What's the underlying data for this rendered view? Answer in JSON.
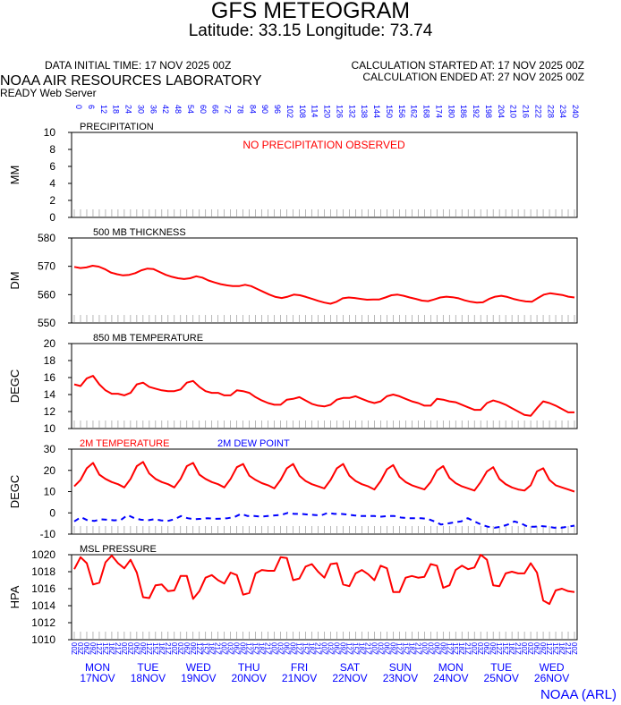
{
  "header": {
    "title": "GFS METEOGRAM",
    "subtitle": "Latitude: 33.15 Longitude:  73.74",
    "init_time": "DATA INITIAL TIME: 17 NOV 2025 00Z",
    "calc_started": "CALCULATION STARTED AT: 17 NOV 2025 00Z",
    "calc_ended": "CALCULATION ENDED AT: 27 NOV 2025 00Z",
    "org": "NOAA AIR RESOURCES LABORATORY",
    "server": "READY Web Server",
    "footer": "NOAA (ARL)"
  },
  "colors": {
    "red": "#ff0000",
    "blue": "#0000ff",
    "axis": "#000000",
    "tick": "#888888"
  },
  "chart_data": [
    {
      "id": "precip",
      "type": "bar",
      "title": "PRECIPITATION",
      "ylabel": "MM",
      "ylim": [
        0,
        10
      ],
      "yticks": [
        0,
        2,
        4,
        6,
        8,
        10
      ],
      "annotation": "NO PRECIPITATION OBSERVED",
      "forecast_hours": [
        "0",
        "6",
        "12",
        "18",
        "24",
        "30",
        "36",
        "42",
        "48",
        "54",
        "60",
        "66",
        "72",
        "78",
        "84",
        "90",
        "96",
        "102",
        "108",
        "114",
        "120",
        "126",
        "132",
        "138",
        "144",
        "150",
        "156",
        "162",
        "168",
        "174",
        "180",
        "186",
        "192",
        "198",
        "204",
        "210",
        "216",
        "222",
        "228",
        "234",
        "240"
      ],
      "values": []
    },
    {
      "id": "thickness",
      "type": "line",
      "title": "500 MB  THICKNESS",
      "ylabel": "DM",
      "ylim": [
        550,
        580
      ],
      "yticks": [
        550,
        560,
        570,
        580
      ],
      "series": [
        {
          "name": "500 MB THICKNESS",
          "color": "#ff0000",
          "values": [
            569.8,
            569.4,
            569.6,
            570.2,
            569.9,
            569.0,
            567.8,
            567.2,
            566.8,
            567.0,
            567.6,
            568.6,
            569.2,
            569.0,
            568.0,
            567.0,
            566.3,
            565.8,
            565.5,
            565.8,
            566.5,
            566.0,
            565.0,
            564.3,
            563.7,
            563.3,
            563.0,
            563.0,
            563.5,
            563.0,
            562.0,
            561.0,
            560.0,
            559.2,
            558.8,
            559.3,
            560.0,
            559.8,
            559.2,
            558.5,
            557.8,
            557.2,
            556.8,
            557.5,
            558.7,
            559.0,
            558.8,
            558.5,
            558.2,
            558.3,
            558.3,
            559.0,
            559.8,
            560.0,
            559.6,
            559.0,
            558.5,
            557.9,
            557.7,
            558.3,
            559.0,
            559.3,
            559.1,
            558.7,
            558.0,
            557.5,
            557.2,
            557.3,
            558.5,
            559.3,
            559.6,
            559.2,
            558.5,
            558.0,
            557.6,
            557.5,
            558.8,
            560.0,
            560.5,
            560.2,
            559.9,
            559.3,
            559.0
          ]
        }
      ]
    },
    {
      "id": "t850",
      "type": "line",
      "title": "850 MB  TEMPERATURE",
      "ylabel": "DEGC",
      "ylim": [
        10,
        20
      ],
      "yticks": [
        10,
        12,
        14,
        16,
        18,
        20
      ],
      "series": [
        {
          "name": "850 MB TEMPERATURE",
          "color": "#ff0000",
          "values": [
            15.2,
            15.0,
            15.9,
            16.2,
            15.2,
            14.5,
            14.1,
            14.1,
            13.9,
            14.2,
            15.2,
            15.4,
            14.9,
            14.7,
            14.5,
            14.4,
            14.4,
            14.6,
            15.4,
            15.6,
            14.9,
            14.4,
            14.2,
            14.2,
            13.9,
            13.9,
            14.5,
            14.4,
            14.2,
            13.7,
            13.3,
            13.0,
            12.8,
            12.8,
            13.4,
            13.5,
            13.7,
            13.3,
            12.9,
            12.7,
            12.6,
            12.8,
            13.4,
            13.6,
            13.6,
            13.8,
            13.5,
            13.2,
            13.0,
            13.2,
            13.8,
            14.0,
            13.8,
            13.5,
            13.2,
            13.0,
            12.7,
            12.7,
            13.5,
            13.4,
            13.2,
            13.1,
            12.8,
            12.5,
            12.2,
            12.2,
            13.0,
            13.3,
            13.1,
            12.8,
            12.4,
            12.0,
            11.6,
            11.5,
            12.4,
            13.2,
            13.0,
            12.7,
            12.3,
            11.9,
            11.9
          ]
        }
      ]
    },
    {
      "id": "t2m",
      "type": "line",
      "title": "",
      "ylabel": "DEGC",
      "ylim": [
        -10,
        30
      ],
      "yticks": [
        -10,
        0,
        10,
        20,
        30
      ],
      "legend": [
        "2M TEMPERATURE",
        "2M  DEW POINT"
      ],
      "series": [
        {
          "name": "2M TEMPERATURE",
          "color": "#ff0000",
          "values": [
            12.5,
            15.5,
            21,
            23.5,
            18,
            16,
            14.5,
            13.5,
            12,
            16,
            22,
            24,
            18.5,
            16,
            14.5,
            13.5,
            12,
            16,
            22,
            23.5,
            18,
            16,
            14.5,
            13.5,
            12,
            16,
            21.5,
            23,
            17.5,
            15.5,
            14,
            13,
            11.5,
            15.5,
            21,
            23,
            17.5,
            15,
            13.5,
            12.5,
            11.5,
            15.5,
            21,
            23,
            17.5,
            15,
            13.5,
            12.5,
            11,
            15,
            20.5,
            22.5,
            17,
            14.5,
            13,
            12,
            11,
            14.5,
            20,
            22,
            16.5,
            14,
            12.5,
            11.5,
            10.5,
            14.5,
            19.5,
            21.5,
            16,
            13.5,
            12,
            11,
            10.5,
            13,
            19.5,
            21,
            15.5,
            13,
            12,
            11,
            10
          ]
        },
        {
          "name": "2M  DEW POINT",
          "color": "#0000ff",
          "dash": true,
          "values": [
            -4,
            -2,
            -3.5,
            -3.8,
            -3,
            -3.2,
            -3.5,
            -3.3,
            -1,
            -2.5,
            -3.2,
            -3.5,
            -3,
            -3.5,
            -3.8,
            -3,
            -1.5,
            -2.5,
            -3,
            -2.8,
            -2.5,
            -2.8,
            -2.7,
            -2.5,
            -2,
            -0.5,
            -1.5,
            -1.5,
            -1.8,
            -1.5,
            -1.2,
            -1,
            0,
            -0.5,
            -0.5,
            -0.8,
            -1,
            -1.2,
            0,
            -0.5,
            -0.5,
            -0.8,
            -1.2,
            -1.5,
            -1.5,
            -1.5,
            -1.8,
            -1.5,
            -1.5,
            -2.2,
            -2.5,
            -2.5,
            -2.5,
            -2.8,
            -4,
            -5.5,
            -5,
            -4.5,
            -4,
            -2.5,
            -4,
            -5.5,
            -6.5,
            -7,
            -6.5,
            -5.5,
            -4,
            -5,
            -6.5,
            -6.5,
            -6.2,
            -6.5,
            -7,
            -7,
            -6.5,
            -6
          ]
        }
      ]
    },
    {
      "id": "mslp",
      "type": "line",
      "title": "MSL PRESSURE",
      "ylabel": "HPA",
      "ylim": [
        1010,
        1020
      ],
      "yticks": [
        1010,
        1012,
        1014,
        1016,
        1018,
        1020
      ],
      "series": [
        {
          "name": "MSL PRESSURE",
          "color": "#ff0000",
          "values": [
            1018.3,
            1019.7,
            1019.0,
            1016.5,
            1016.7,
            1019.1,
            1019.9,
            1019.0,
            1018.4,
            1019.4,
            1017.9,
            1015.0,
            1014.9,
            1016.4,
            1016.5,
            1015.7,
            1015.8,
            1017.5,
            1017.5,
            1014.8,
            1015.7,
            1017.3,
            1017.6,
            1017.0,
            1016.6,
            1017.9,
            1017.6,
            1015.3,
            1015.5,
            1017.8,
            1018.2,
            1018.1,
            1018.1,
            1019.7,
            1019.6,
            1017.0,
            1017.2,
            1018.6,
            1018.9,
            1018.0,
            1017.3,
            1018.9,
            1019.0,
            1016.5,
            1016.3,
            1017.8,
            1018.2,
            1017.7,
            1017.0,
            1018.7,
            1018.4,
            1015.6,
            1015.6,
            1017.3,
            1017.5,
            1017.3,
            1017.4,
            1018.9,
            1018.7,
            1016.1,
            1016.4,
            1018.2,
            1018.7,
            1018.3,
            1018.5,
            1020.0,
            1019.4,
            1016.4,
            1016.3,
            1017.8,
            1018.0,
            1017.8,
            1017.8,
            1019.0,
            1017.9,
            1014.6,
            1014.2,
            1015.8,
            1016.0,
            1015.7,
            1015.6
          ]
        }
      ]
    }
  ],
  "time_axis": {
    "hours_labels": [
      "00Z",
      "03Z",
      "06Z",
      "09Z",
      "12Z",
      "15Z",
      "18Z",
      "21Z"
    ],
    "days": [
      {
        "dow": "MON",
        "date": "17NOV"
      },
      {
        "dow": "TUE",
        "date": "18NOV"
      },
      {
        "dow": "WED",
        "date": "19NOV"
      },
      {
        "dow": "THU",
        "date": "20NOV"
      },
      {
        "dow": "FRI",
        "date": "21NOV"
      },
      {
        "dow": "SAT",
        "date": "22NOV"
      },
      {
        "dow": "SUN",
        "date": "23NOV"
      },
      {
        "dow": "MON",
        "date": "24NOV"
      },
      {
        "dow": "TUE",
        "date": "25NOV"
      },
      {
        "dow": "WED",
        "date": "26NOV"
      }
    ]
  }
}
